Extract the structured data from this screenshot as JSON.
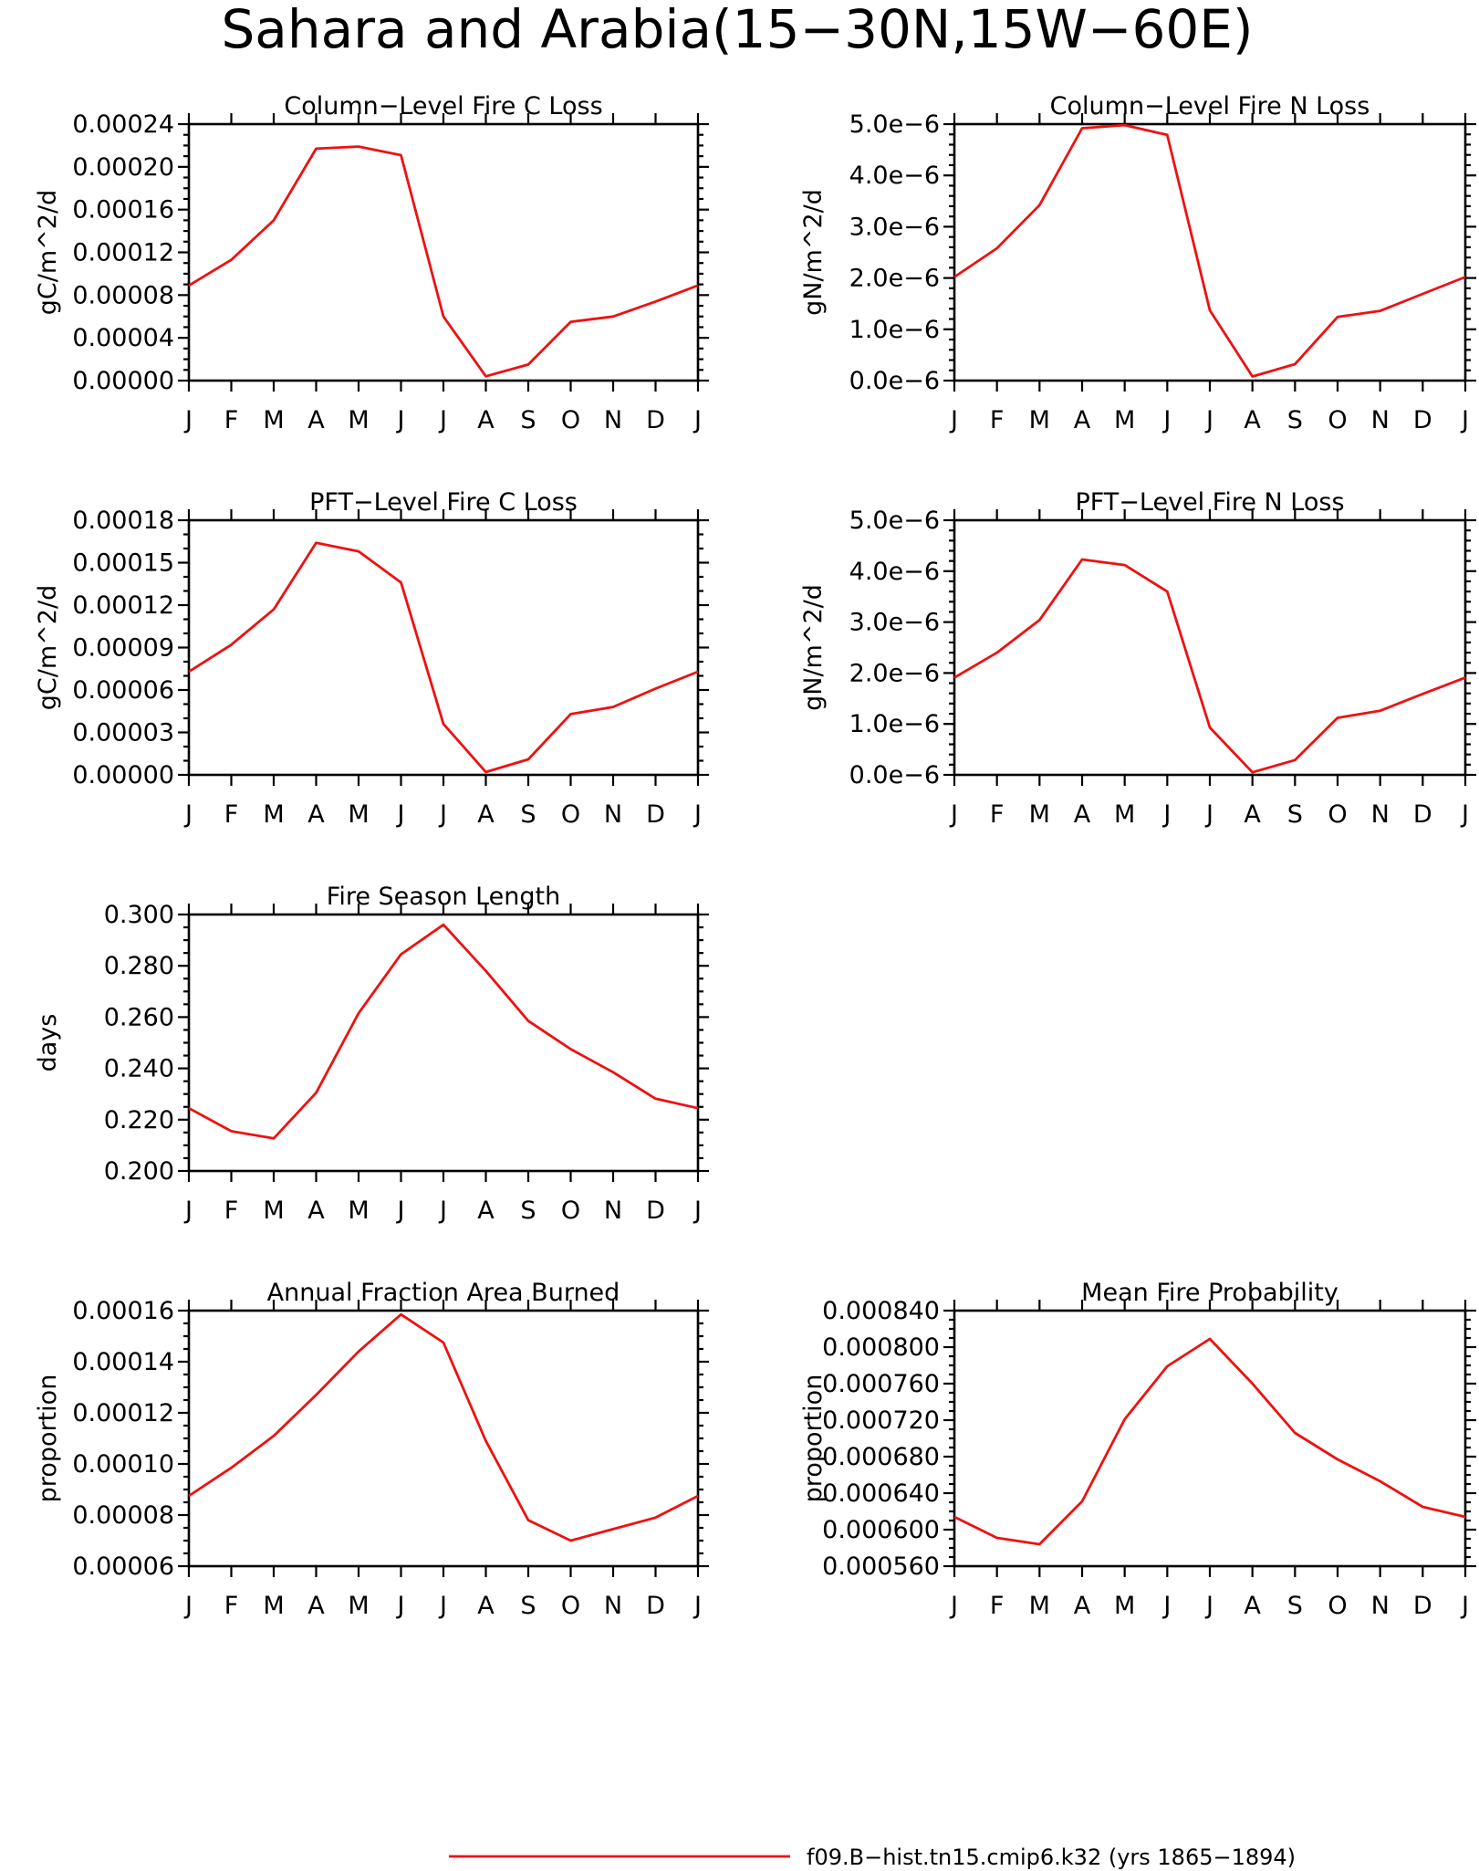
{
  "figure": {
    "title": "Sahara and Arabia(15−30N,15W−60E)",
    "series_color": "#ee1111"
  },
  "legend": {
    "label": "f09.B−hist.tn15.cmip6.k32 (yrs 1865−1894)"
  },
  "chart_data": [
    {
      "id": "col-c",
      "type": "line",
      "title": "Column−Level Fire C Loss",
      "ylabel": "gC/m^2/d",
      "categories": [
        "J",
        "F",
        "M",
        "A",
        "M",
        "J",
        "J",
        "A",
        "S",
        "O",
        "N",
        "D",
        "J"
      ],
      "ylim": [
        0,
        0.00024
      ],
      "yticks": [
        0,
        4e-05,
        8e-05,
        0.00012,
        0.00016,
        0.0002,
        0.00024
      ],
      "ytick_labels": [
        "0.00000",
        "0.00004",
        "0.00008",
        "0.00012",
        "0.00016",
        "0.00020",
        "0.00024"
      ],
      "minor_per_major": 4,
      "values": [
        8.9e-05,
        0.000113,
        0.00015,
        0.000217,
        0.000219,
        0.000211,
        6e-05,
        4e-06,
        1.5e-05,
        5.5e-05,
        6e-05,
        7.4e-05,
        8.9e-05
      ]
    },
    {
      "id": "col-n",
      "type": "line",
      "title": "Column−Level Fire N Loss",
      "ylabel": "gN/m^2/d",
      "categories": [
        "J",
        "F",
        "M",
        "A",
        "M",
        "J",
        "J",
        "A",
        "S",
        "O",
        "N",
        "D",
        "J"
      ],
      "ylim": [
        0,
        5e-06
      ],
      "yticks": [
        0,
        1e-06,
        2e-06,
        3e-06,
        4e-06,
        5e-06
      ],
      "ytick_labels": [
        "0.0e−6",
        "1.0e−6",
        "2.0e−6",
        "3.0e−6",
        "4.0e−6",
        "5.0e−6"
      ],
      "minor_per_major": 5,
      "values": [
        2.02e-06,
        2.58e-06,
        3.42e-06,
        4.92e-06,
        4.98e-06,
        4.79e-06,
        1.37e-06,
        8e-08,
        3.2e-07,
        1.24e-06,
        1.36e-06,
        1.69e-06,
        2.02e-06
      ]
    },
    {
      "id": "pft-c",
      "type": "line",
      "title": "PFT−Level Fire C Loss",
      "ylabel": "gC/m^2/d",
      "categories": [
        "J",
        "F",
        "M",
        "A",
        "M",
        "J",
        "J",
        "A",
        "S",
        "O",
        "N",
        "D",
        "J"
      ],
      "ylim": [
        0,
        0.00018
      ],
      "yticks": [
        0,
        3e-05,
        6e-05,
        9e-05,
        0.00012,
        0.00015,
        0.00018
      ],
      "ytick_labels": [
        "0.00000",
        "0.00003",
        "0.00006",
        "0.00009",
        "0.00012",
        "0.00015",
        "0.00018"
      ],
      "minor_per_major": 3,
      "values": [
        7.3e-05,
        9.2e-05,
        0.000117,
        0.000164,
        0.000158,
        0.000136,
        3.6e-05,
        2e-06,
        1.1e-05,
        4.3e-05,
        4.8e-05,
        6.1e-05,
        7.3e-05
      ]
    },
    {
      "id": "pft-n",
      "type": "line",
      "title": "PFT−Level Fire N Loss",
      "ylabel": "gN/m^2/d",
      "categories": [
        "J",
        "F",
        "M",
        "A",
        "M",
        "J",
        "J",
        "A",
        "S",
        "O",
        "N",
        "D",
        "J"
      ],
      "ylim": [
        0,
        5e-06
      ],
      "yticks": [
        0,
        1e-06,
        2e-06,
        3e-06,
        4e-06,
        5e-06
      ],
      "ytick_labels": [
        "0.0e−6",
        "1.0e−6",
        "2.0e−6",
        "3.0e−6",
        "4.0e−6",
        "5.0e−6"
      ],
      "minor_per_major": 5,
      "values": [
        1.91e-06,
        2.4e-06,
        3.04e-06,
        4.23e-06,
        4.12e-06,
        3.6e-06,
        9.3e-07,
        5e-08,
        2.9e-07,
        1.12e-06,
        1.26e-06,
        1.59e-06,
        1.91e-06
      ]
    },
    {
      "id": "season",
      "type": "line",
      "title": "Fire Season Length",
      "ylabel": "days",
      "categories": [
        "J",
        "F",
        "M",
        "A",
        "M",
        "J",
        "J",
        "A",
        "S",
        "O",
        "N",
        "D",
        "J"
      ],
      "ylim": [
        0.2,
        0.3
      ],
      "yticks": [
        0.2,
        0.22,
        0.24,
        0.26,
        0.28,
        0.3
      ],
      "ytick_labels": [
        "0.200",
        "0.220",
        "0.240",
        "0.260",
        "0.280",
        "0.300"
      ],
      "minor_per_major": 4,
      "values": [
        0.2245,
        0.2155,
        0.2127,
        0.2305,
        0.2615,
        0.2845,
        0.296,
        0.278,
        0.2585,
        0.2475,
        0.2385,
        0.2282,
        0.2245
      ]
    },
    {
      "id": "burned",
      "type": "line",
      "title": "Annual Fraction Area Burned",
      "ylabel": "proportion",
      "categories": [
        "J",
        "F",
        "M",
        "A",
        "M",
        "J",
        "J",
        "A",
        "S",
        "O",
        "N",
        "D",
        "J"
      ],
      "ylim": [
        6e-05,
        0.00016
      ],
      "yticks": [
        6e-05,
        8e-05,
        0.0001,
        0.00012,
        0.00014,
        0.00016
      ],
      "ytick_labels": [
        "0.00006",
        "0.00008",
        "0.00010",
        "0.00012",
        "0.00014",
        "0.00016"
      ],
      "minor_per_major": 4,
      "values": [
        8.75e-05,
        9.85e-05,
        0.000111,
        0.000127,
        0.000144,
        0.0001585,
        0.0001475,
        0.000109,
        7.8e-05,
        7e-05,
        7.45e-05,
        7.9e-05,
        8.75e-05
      ]
    },
    {
      "id": "prob",
      "type": "line",
      "title": "Mean Fire Probability",
      "ylabel": "proportion",
      "categories": [
        "J",
        "F",
        "M",
        "A",
        "M",
        "J",
        "J",
        "A",
        "S",
        "O",
        "N",
        "D",
        "J"
      ],
      "ylim": [
        0.00056,
        0.00084
      ],
      "yticks": [
        0.00056,
        0.0006,
        0.00064,
        0.00068,
        0.00072,
        0.00076,
        0.0008,
        0.00084
      ],
      "ytick_labels": [
        "0.000560",
        "0.000600",
        "0.000640",
        "0.000680",
        "0.000720",
        "0.000760",
        "0.000800",
        "0.000840"
      ],
      "minor_per_major": 4,
      "values": [
        0.000614,
        0.000591,
        0.000584,
        0.000631,
        0.000721,
        0.000779,
        0.000809,
        0.00076,
        0.000706,
        0.000677,
        0.000653,
        0.000625,
        0.000614
      ]
    }
  ]
}
